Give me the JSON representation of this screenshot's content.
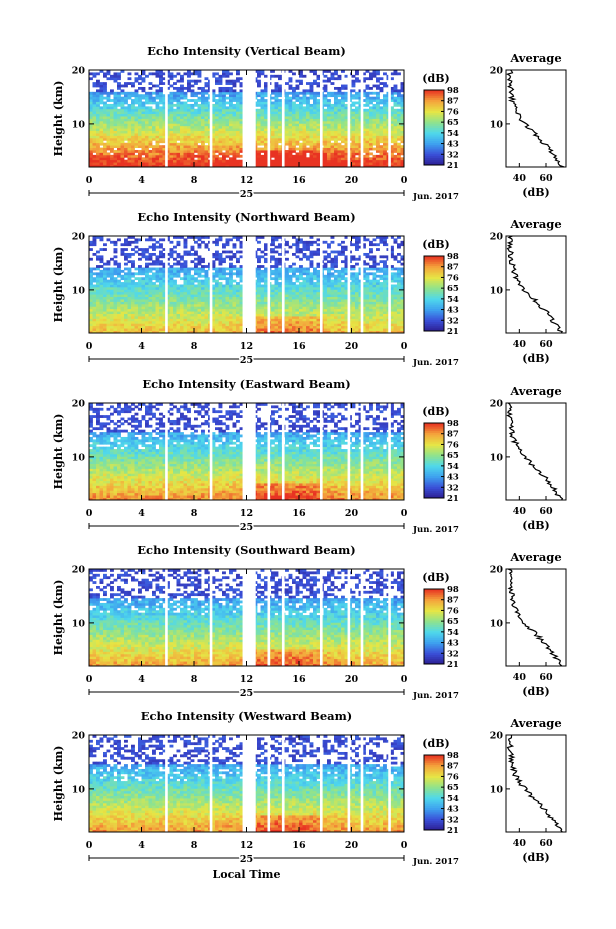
{
  "chart_data": {
    "type": "heatmap",
    "xlabel": "Local Time",
    "xlim": [
      0,
      24
    ],
    "x_ticks": [
      "0",
      "4",
      "8",
      "12",
      "16",
      "20",
      "0"
    ],
    "date_label": "25",
    "month_label": "Jun. 2017",
    "ylabel": "Height (km)",
    "ylim": [
      2,
      20
    ],
    "y_ticks": [
      "10",
      "20"
    ],
    "data_gaps_hours": [
      [
        5.8,
        6.0
      ],
      [
        9.2,
        9.4
      ],
      [
        11.7,
        12.7
      ],
      [
        13.6,
        13.8
      ],
      [
        14.7,
        14.9
      ],
      [
        17.6,
        17.8
      ],
      [
        19.7,
        19.9
      ],
      [
        20.7,
        20.9
      ],
      [
        22.8,
        23.0
      ]
    ],
    "colorbar": {
      "unit": "(dB)",
      "ticks": [
        21,
        32,
        43,
        54,
        65,
        76,
        87,
        98
      ],
      "colors": [
        "#2c1d8f",
        "#3a4fd8",
        "#3ea0ef",
        "#4fd8ec",
        "#8fe38d",
        "#e6e645",
        "#f4a43c",
        "#e83222"
      ]
    },
    "average_panel": {
      "title": "Average",
      "xlabel": "(dB)",
      "x_ticks": [
        "40",
        "60"
      ],
      "xlim": [
        30,
        75
      ],
      "profile_height_km": [
        2,
        4,
        6,
        8,
        10,
        12,
        14,
        16,
        18,
        20
      ],
      "profile_db": [
        72,
        66,
        60,
        52,
        44,
        38,
        35,
        34,
        33,
        33
      ]
    },
    "panels": [
      {
        "title": "Echo Intensity (Vertical Beam)",
        "surface_peak": 0.95,
        "cutoff_km": 16
      },
      {
        "title": "Echo Intensity (Northward Beam)",
        "surface_peak": 0.72,
        "cutoff_km": 14
      },
      {
        "title": "Echo Intensity (Eastward Beam)",
        "surface_peak": 0.8,
        "cutoff_km": 14.5
      },
      {
        "title": "Echo Intensity (Southward Beam)",
        "surface_peak": 0.76,
        "cutoff_km": 14.5
      },
      {
        "title": "Echo Intensity (Westward Beam)",
        "surface_peak": 0.78,
        "cutoff_km": 14.5
      }
    ]
  }
}
